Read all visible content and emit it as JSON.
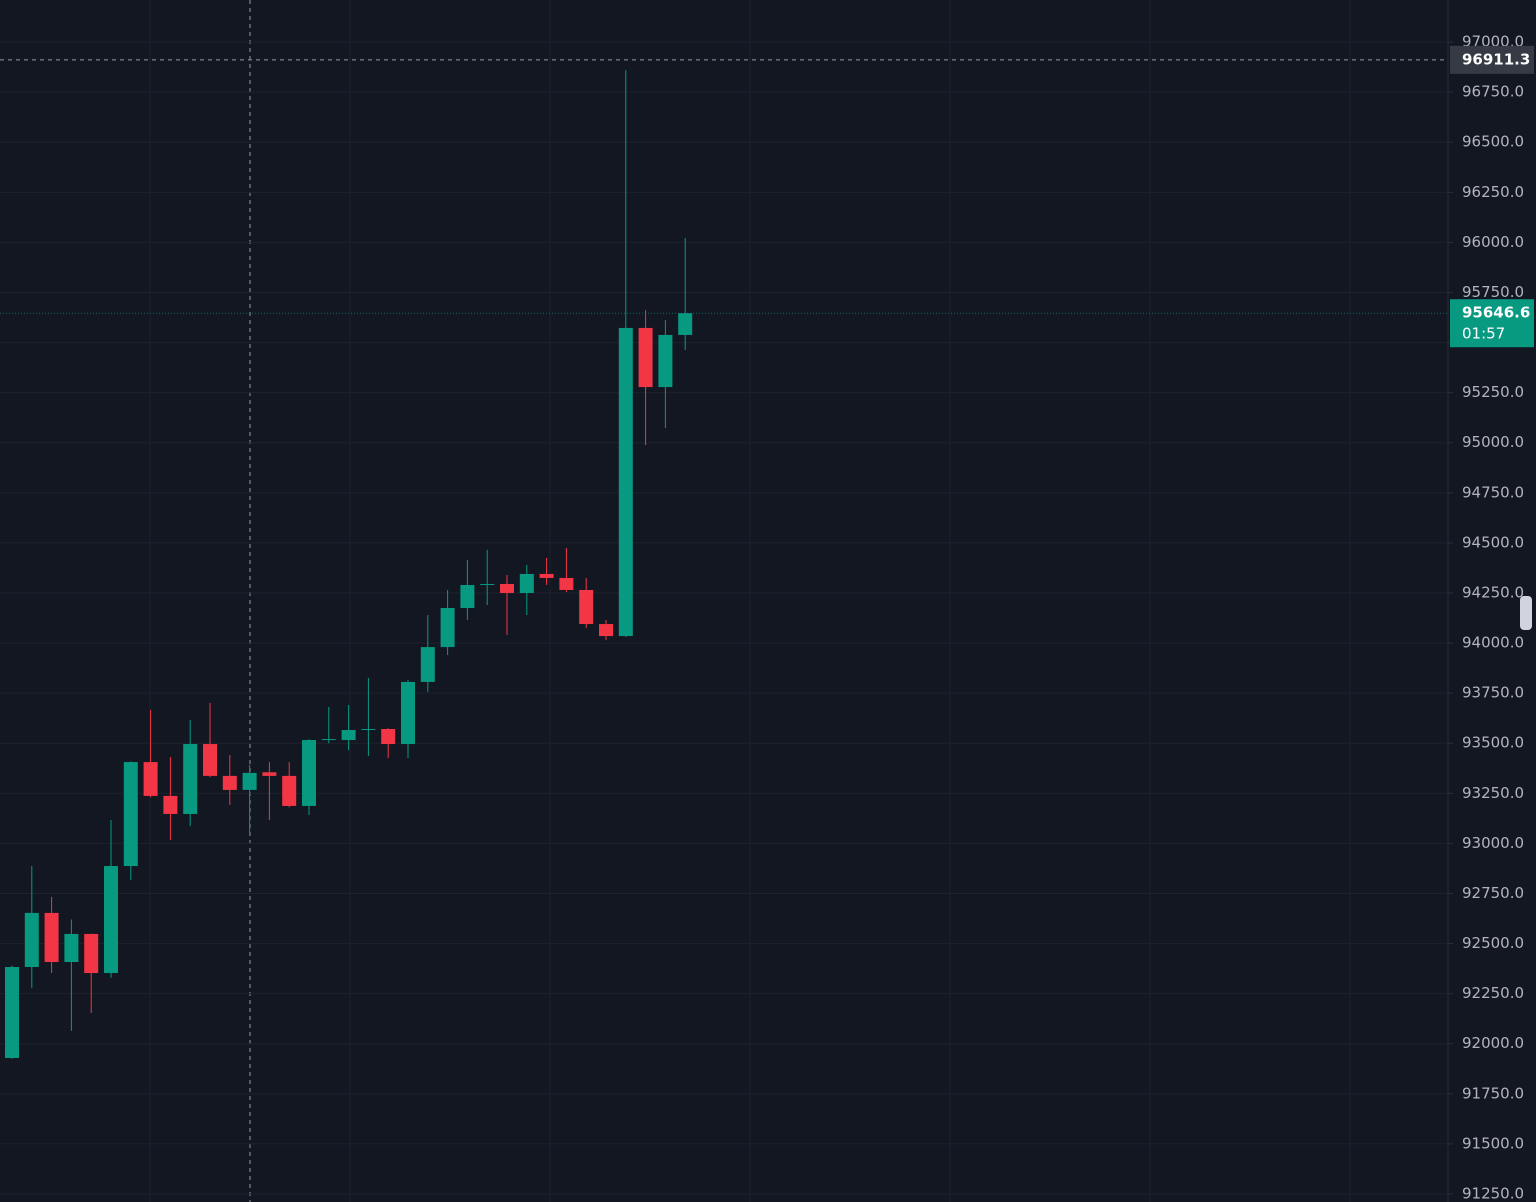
{
  "chart_data": {
    "type": "candlestick",
    "open": [
      91929,
      92383,
      92653,
      92408,
      92548,
      92353,
      92887,
      93406,
      93237,
      93147,
      93496,
      93337,
      93267,
      93355,
      93337,
      93187,
      93516,
      93516,
      93566,
      93571,
      93496,
      93806,
      93980,
      94175,
      94290,
      94295,
      94250,
      94345,
      94325,
      94265,
      94095,
      94035,
      95573,
      95278,
      95538
    ],
    "high": [
      92390,
      92887,
      92733,
      92620,
      92550,
      93117,
      93410,
      93666,
      93431,
      93616,
      93701,
      93441,
      93392,
      93406,
      93406,
      93520,
      93681,
      93691,
      93826,
      93575,
      93816,
      94140,
      94265,
      94415,
      94465,
      94340,
      94390,
      94425,
      94475,
      94325,
      94115,
      96860,
      95662,
      95612,
      96022
    ],
    "low": [
      91925,
      92278,
      92353,
      92064,
      92154,
      92330,
      92817,
      93230,
      93017,
      93087,
      93330,
      93192,
      93042,
      93117,
      93180,
      93142,
      93500,
      93466,
      93436,
      93426,
      93426,
      93756,
      93940,
      94115,
      94190,
      94040,
      94140,
      94290,
      94255,
      94075,
      94015,
      94030,
      94989,
      95073,
      95463
    ],
    "close": [
      92383,
      92653,
      92408,
      92548,
      92353,
      92887,
      93406,
      93237,
      93147,
      93496,
      93337,
      93267,
      93352,
      93337,
      93187,
      93516,
      93521,
      93566,
      93571,
      93496,
      93806,
      93980,
      94175,
      94290,
      94295,
      94250,
      94345,
      94325,
      94265,
      94095,
      94035,
      95573,
      95278,
      95538,
      95646.6
    ],
    "up_color": "#089981",
    "down_color": "#f23645",
    "ylim": [
      91210,
      97210
    ],
    "yticks": [
      {
        "value": 97000,
        "label": "97000.0"
      },
      {
        "value": 96750,
        "label": "96750.0"
      },
      {
        "value": 96500,
        "label": "96500.0"
      },
      {
        "value": 96250,
        "label": "96250.0"
      },
      {
        "value": 96000,
        "label": "96000.0"
      },
      {
        "value": 95750,
        "label": "95750.0"
      },
      {
        "value": 95500,
        "label": "95500.0"
      },
      {
        "value": 95250,
        "label": "95250.0"
      },
      {
        "value": 95000,
        "label": "95000.0"
      },
      {
        "value": 94750,
        "label": "94750.0"
      },
      {
        "value": 94500,
        "label": "94500.0"
      },
      {
        "value": 94250,
        "label": "94250.0"
      },
      {
        "value": 94000,
        "label": "94000.0"
      },
      {
        "value": 93750,
        "label": "93750.0"
      },
      {
        "value": 93500,
        "label": "93500.0"
      },
      {
        "value": 93250,
        "label": "93250.0"
      },
      {
        "value": 93000,
        "label": "93000.0"
      },
      {
        "value": 92750,
        "label": "92750.0"
      },
      {
        "value": 92500,
        "label": "92500.0"
      },
      {
        "value": 92250,
        "label": "92250.0"
      },
      {
        "value": 92000,
        "label": "92000.0"
      },
      {
        "value": 91750,
        "label": "91750.0"
      },
      {
        "value": 91500,
        "label": "91500.0"
      },
      {
        "value": 91250,
        "label": "91250.0"
      }
    ],
    "grid": true,
    "crosshair_price": 96911.3,
    "last_price": 95646.6,
    "countdown": "01:57"
  }
}
